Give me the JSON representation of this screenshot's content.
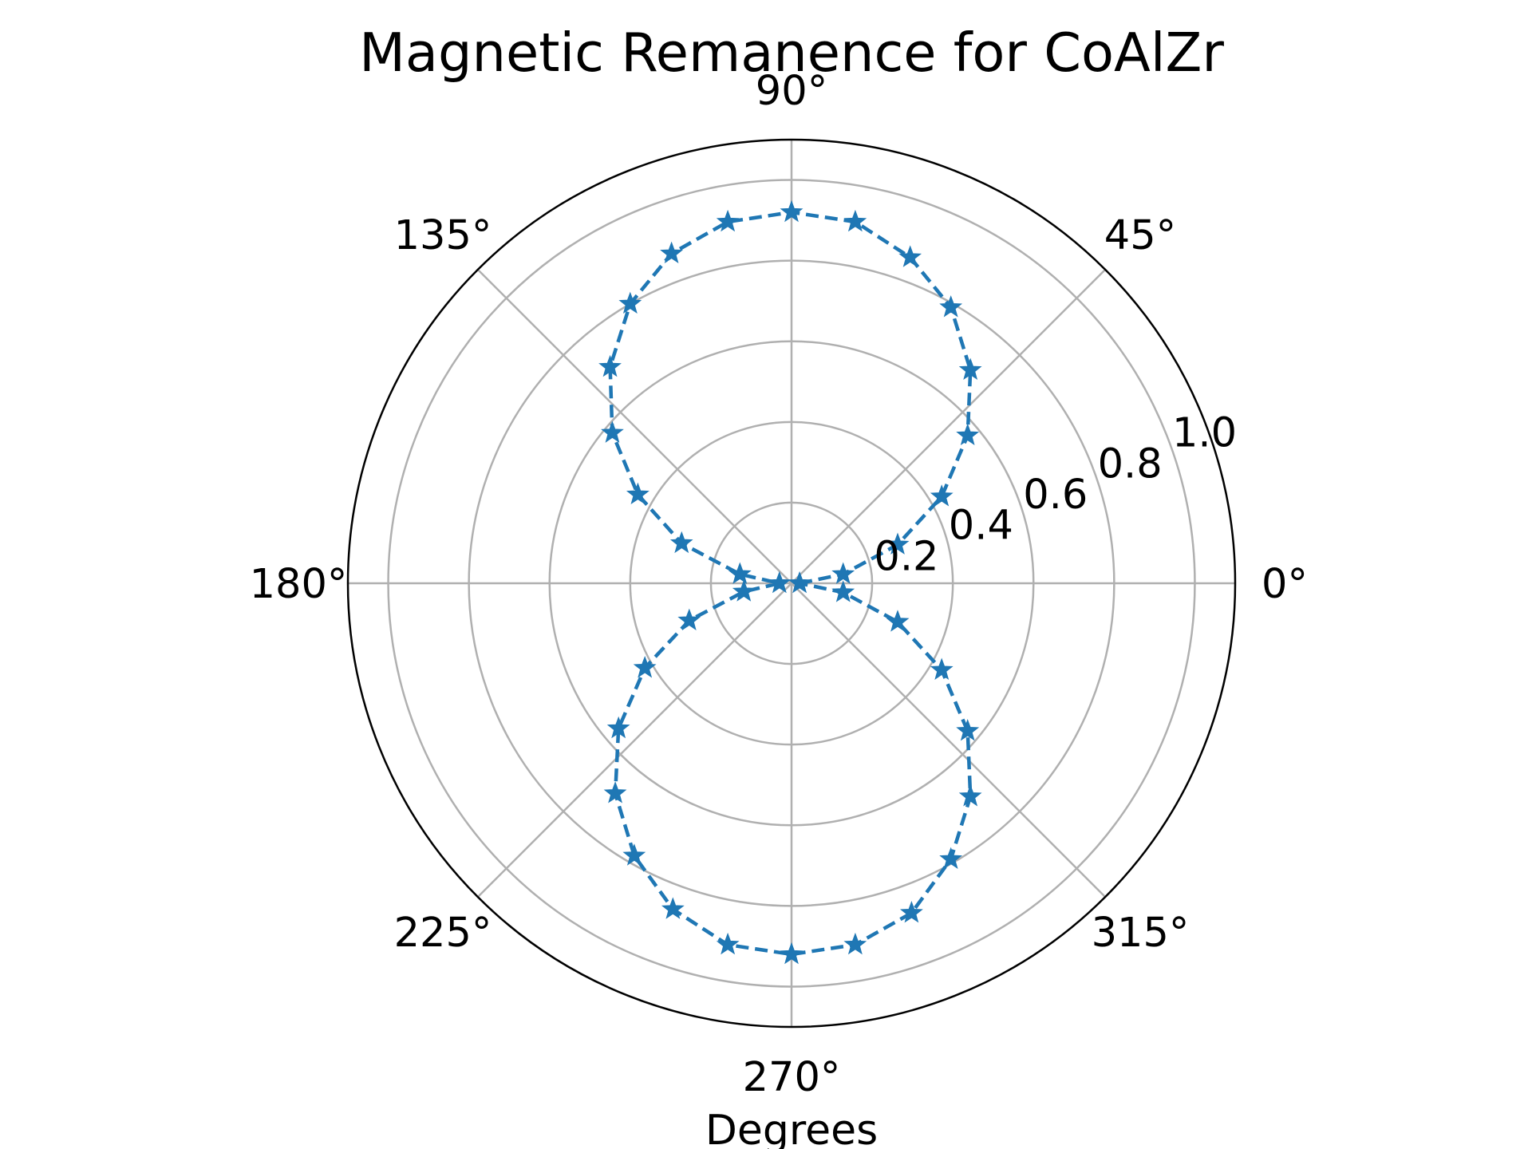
{
  "chart_data": {
    "type": "scatter",
    "subtype": "polar",
    "title": "Magnetic Remanence for CoAlZr",
    "xlabel": "Degrees",
    "ylabel": "",
    "angle_unit": "degrees",
    "theta_tick_labels": [
      "0°",
      "45°",
      "90°",
      "135°",
      "180°",
      "225°",
      "270°",
      "315°"
    ],
    "radial_tick_labels": [
      "0.2",
      "0.4",
      "0.6",
      "0.8",
      "1.0"
    ],
    "radial_ticks": [
      0.2,
      0.4,
      0.6,
      0.8,
      1.0
    ],
    "rlim": [
      0,
      1.1
    ],
    "grid": true,
    "marker": "star",
    "line_style": "dashed",
    "colors": {
      "series": "#1f77b4",
      "grid": "#b0b0b0",
      "frame": "#000000"
    },
    "series": [
      {
        "x": [
          0,
          10,
          20,
          30,
          40,
          50,
          60,
          70,
          80,
          90,
          100,
          110,
          120,
          130,
          140,
          150,
          160,
          170,
          180,
          190,
          200,
          210,
          220,
          230,
          240,
          250,
          260,
          270,
          280,
          290,
          300,
          310,
          320,
          330,
          340,
          350
        ],
        "y": [
          0.02,
          0.13,
          0.28,
          0.43,
          0.57,
          0.69,
          0.79,
          0.86,
          0.91,
          0.92,
          0.91,
          0.87,
          0.8,
          0.7,
          0.58,
          0.44,
          0.29,
          0.13,
          0.03,
          0.12,
          0.27,
          0.42,
          0.56,
          0.68,
          0.78,
          0.86,
          0.91,
          0.92,
          0.91,
          0.87,
          0.79,
          0.69,
          0.57,
          0.43,
          0.28,
          0.13
        ]
      }
    ]
  }
}
